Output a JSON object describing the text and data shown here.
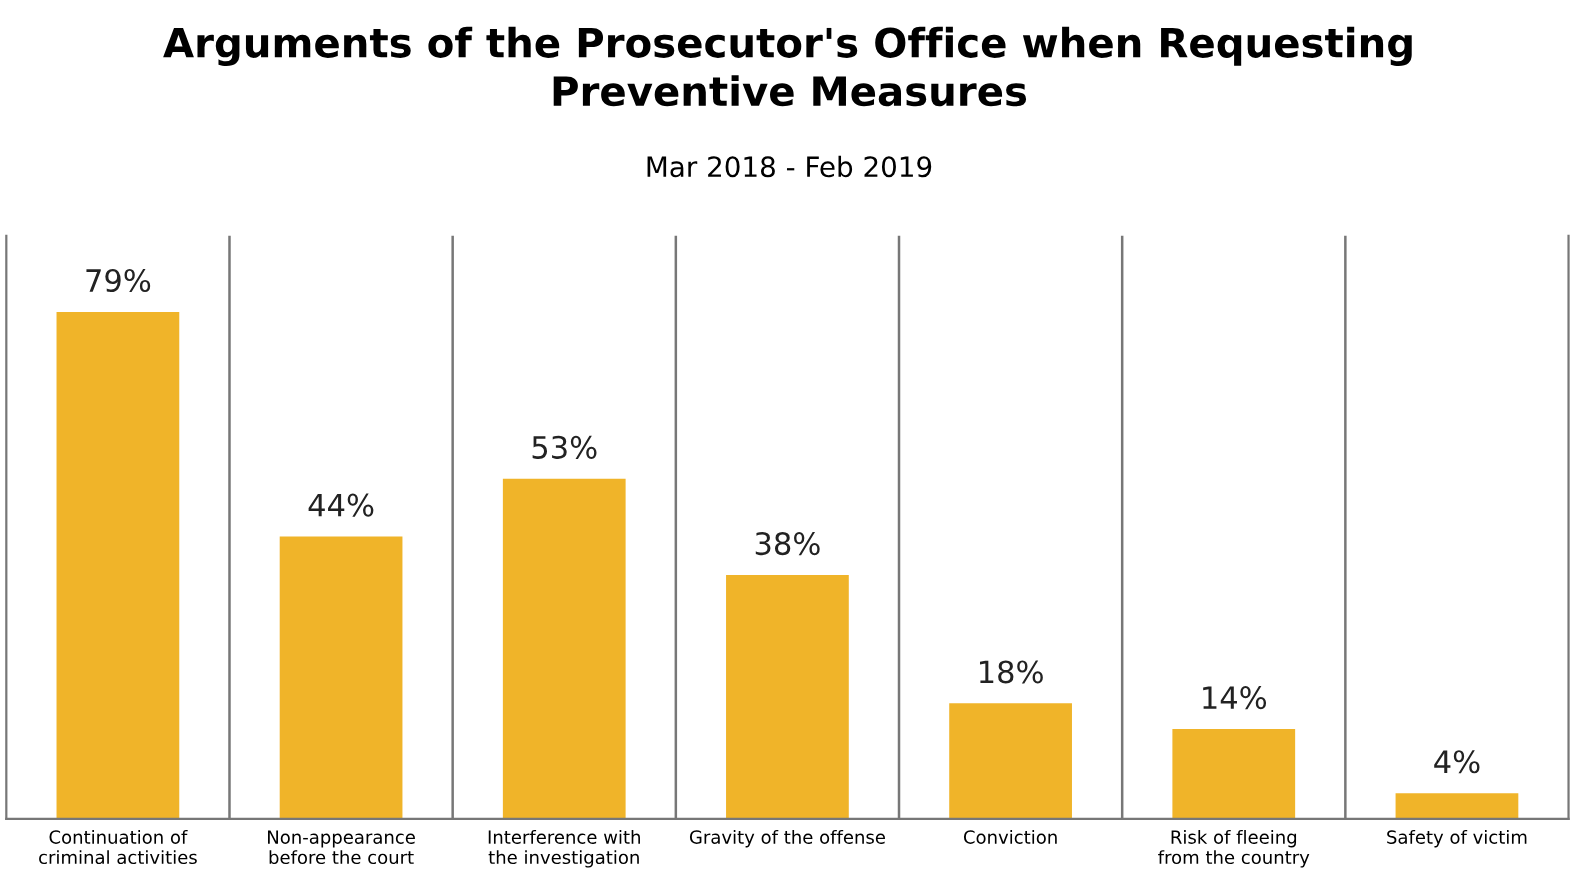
{
  "chart_data": {
    "type": "bar",
    "title": "Arguments of the Prosecutor's Office when Requesting\nPreventive Measures",
    "subtitle": "Mar 2018 - Feb 2019",
    "categories": [
      "Continuation of criminal activities",
      "Non-appearance before the court",
      "Interference with the investigation",
      "Gravity of the offense",
      "Conviction",
      "Risk of fleeing from the country",
      "Safety of victim"
    ],
    "values": [
      79,
      44,
      53,
      38,
      18,
      14,
      4
    ],
    "color": "#f0b429",
    "value_labels": [
      "79%",
      "44%",
      "53%",
      "38%",
      "18%",
      "14%",
      "4%"
    ],
    "grid": "x"
  }
}
